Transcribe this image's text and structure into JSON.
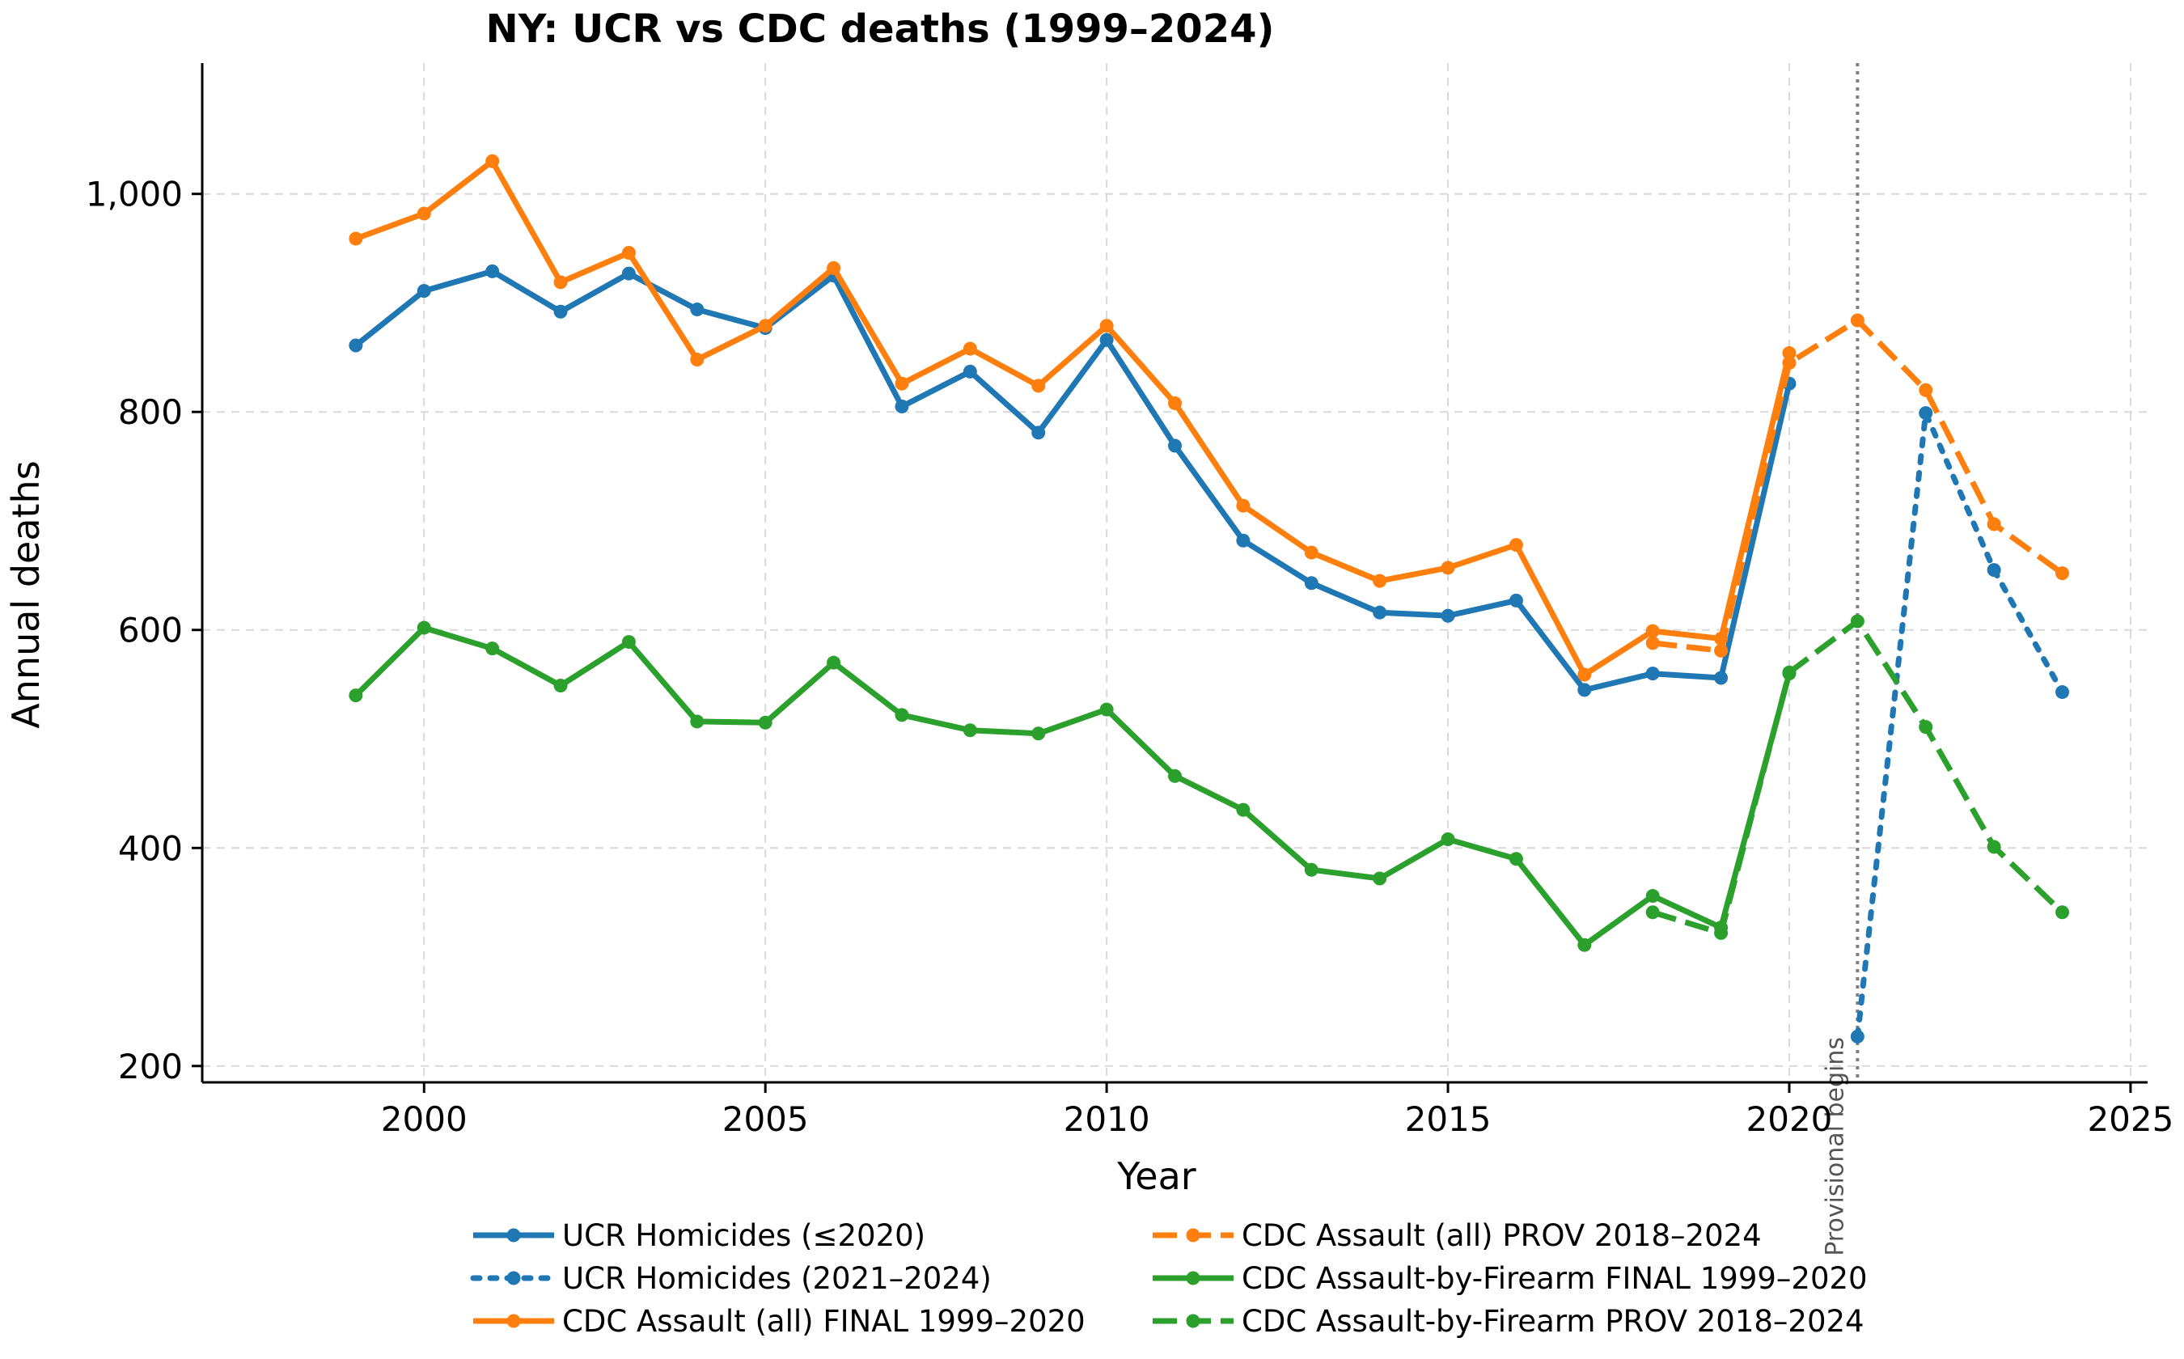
{
  "chart_data": {
    "type": "line",
    "title": "NY: UCR vs CDC deaths (1999–2024)",
    "xlabel": "Year",
    "ylabel": "Annual deaths",
    "xlim": [
      1996.75,
      2025.25
    ],
    "ylim": [
      185,
      1120
    ],
    "xticks": [
      2000,
      2005,
      2010,
      2015,
      2020,
      2025
    ],
    "yticks": [
      200,
      400,
      600,
      800,
      1000
    ],
    "ytick_labels": [
      "200",
      "400",
      "600",
      "800",
      "1,000"
    ],
    "grid": true,
    "legend_position": "bottom-center",
    "annotation": {
      "text": "Provisional begins",
      "x": 2021
    },
    "series": [
      {
        "name": "UCR Homicides (≤2020)",
        "color": "#1f77b4",
        "style": "solid",
        "x": [
          1999,
          2000,
          2001,
          2002,
          2003,
          2004,
          2005,
          2006,
          2007,
          2008,
          2009,
          2010,
          2011,
          2012,
          2013,
          2014,
          2015,
          2016,
          2017,
          2018,
          2019,
          2020
        ],
        "y": [
          861,
          911,
          929,
          892,
          927,
          894,
          877,
          925,
          805,
          837,
          781,
          866,
          769,
          682,
          643,
          616,
          613,
          627,
          545,
          560,
          556,
          826
        ]
      },
      {
        "name": "UCR Homicides (2021–2024)",
        "color": "#1f77b4",
        "style": "dotted",
        "x": [
          2021,
          2022,
          2023,
          2024
        ],
        "y": [
          227,
          799,
          655,
          543
        ]
      },
      {
        "name": "CDC Assault (all) FINAL 1999–2020",
        "color": "#ff7f0e",
        "style": "solid",
        "x": [
          1999,
          2000,
          2001,
          2002,
          2003,
          2004,
          2005,
          2006,
          2007,
          2008,
          2009,
          2010,
          2011,
          2012,
          2013,
          2014,
          2015,
          2016,
          2017,
          2018,
          2019,
          2020
        ],
        "y": [
          959,
          982,
          1030,
          919,
          946,
          848,
          879,
          932,
          826,
          858,
          824,
          879,
          808,
          714,
          671,
          645,
          657,
          678,
          559,
          599,
          592,
          854
        ]
      },
      {
        "name": "CDC Assault (all) PROV 2018–2024",
        "color": "#ff7f0e",
        "style": "dashed",
        "x": [
          2018,
          2019,
          2020,
          2021,
          2022,
          2023,
          2024
        ],
        "y": [
          588,
          581,
          845,
          884,
          820,
          697,
          652
        ]
      },
      {
        "name": "CDC Assault-by-Firearm FINAL 1999–2020",
        "color": "#2ca02c",
        "style": "solid",
        "x": [
          1999,
          2000,
          2001,
          2002,
          2003,
          2004,
          2005,
          2006,
          2007,
          2008,
          2009,
          2010,
          2011,
          2012,
          2013,
          2014,
          2015,
          2016,
          2017,
          2018,
          2019,
          2020
        ],
        "y": [
          540,
          602,
          583,
          549,
          589,
          516,
          515,
          570,
          522,
          508,
          505,
          527,
          466,
          435,
          380,
          372,
          408,
          390,
          311,
          356,
          327,
          560
        ]
      },
      {
        "name": "CDC Assault-by-Firearm PROV 2018–2024",
        "color": "#2ca02c",
        "style": "dashed",
        "x": [
          2018,
          2019,
          2020,
          2021,
          2022,
          2023,
          2024
        ],
        "y": [
          341,
          322,
          561,
          608,
          511,
          401,
          341
        ]
      }
    ]
  }
}
